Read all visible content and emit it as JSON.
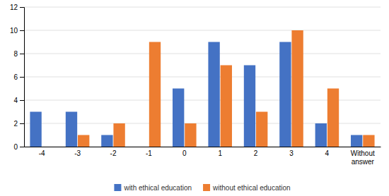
{
  "chart_data": {
    "type": "bar",
    "categories": [
      "-4",
      "-3",
      "-2",
      "-1",
      "0",
      "1",
      "2",
      "3",
      "4",
      "Without\nanswer"
    ],
    "series": [
      {
        "name": "with ethical education",
        "color": "#4472C4",
        "values": [
          3,
          3,
          1,
          0,
          5,
          9,
          7,
          9,
          2,
          1
        ]
      },
      {
        "name": "without ethical education",
        "color": "#ED7D31",
        "values": [
          0,
          1,
          2,
          9,
          2,
          7,
          3,
          10,
          5,
          1
        ]
      }
    ],
    "ylim": [
      0,
      12
    ],
    "yticks": [
      0,
      2,
      4,
      6,
      8,
      10,
      12
    ],
    "grid": true,
    "legend": "bottom"
  }
}
